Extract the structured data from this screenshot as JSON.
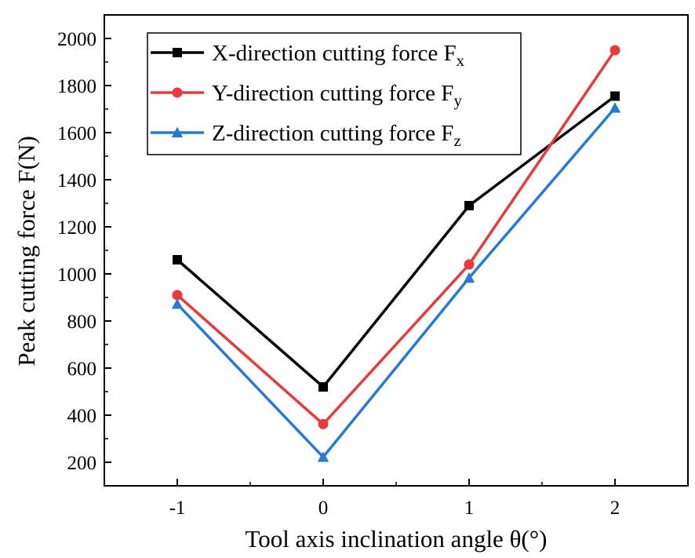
{
  "chart_data": {
    "type": "line",
    "xlabel": "Tool axis inclination angle θ(°)",
    "ylabel": "Peak cutting force F(N)",
    "xlim": [
      -1.5,
      2.5
    ],
    "ylim": [
      100,
      2100
    ],
    "x_ticks": [
      -1,
      0,
      1,
      2
    ],
    "x_tick_labels": [
      "-1",
      "0",
      "1",
      "2"
    ],
    "y_ticks": [
      200,
      400,
      600,
      800,
      1000,
      1200,
      1400,
      1600,
      1800,
      2000
    ],
    "y_tick_labels": [
      "200",
      "400",
      "600",
      "800",
      "1000",
      "1200",
      "1400",
      "1600",
      "1800",
      "2000"
    ],
    "x": [
      -1,
      0,
      1,
      2
    ],
    "legend_position": "top-left",
    "grid": false,
    "series": [
      {
        "name": "X-direction cutting force F",
        "subscript": "x",
        "color": "#000000",
        "marker": "square",
        "values": [
          1060,
          520,
          1290,
          1755
        ]
      },
      {
        "name": "Y-direction cutting force F",
        "subscript": "y",
        "color": "#e8393b",
        "marker": "circle",
        "values": [
          910,
          362,
          1040,
          1950
        ]
      },
      {
        "name": "Z-direction cutting force F",
        "subscript": "z",
        "color": "#2a78d6",
        "marker": "triangle",
        "values": [
          872,
          222,
          983,
          1705
        ]
      }
    ]
  }
}
